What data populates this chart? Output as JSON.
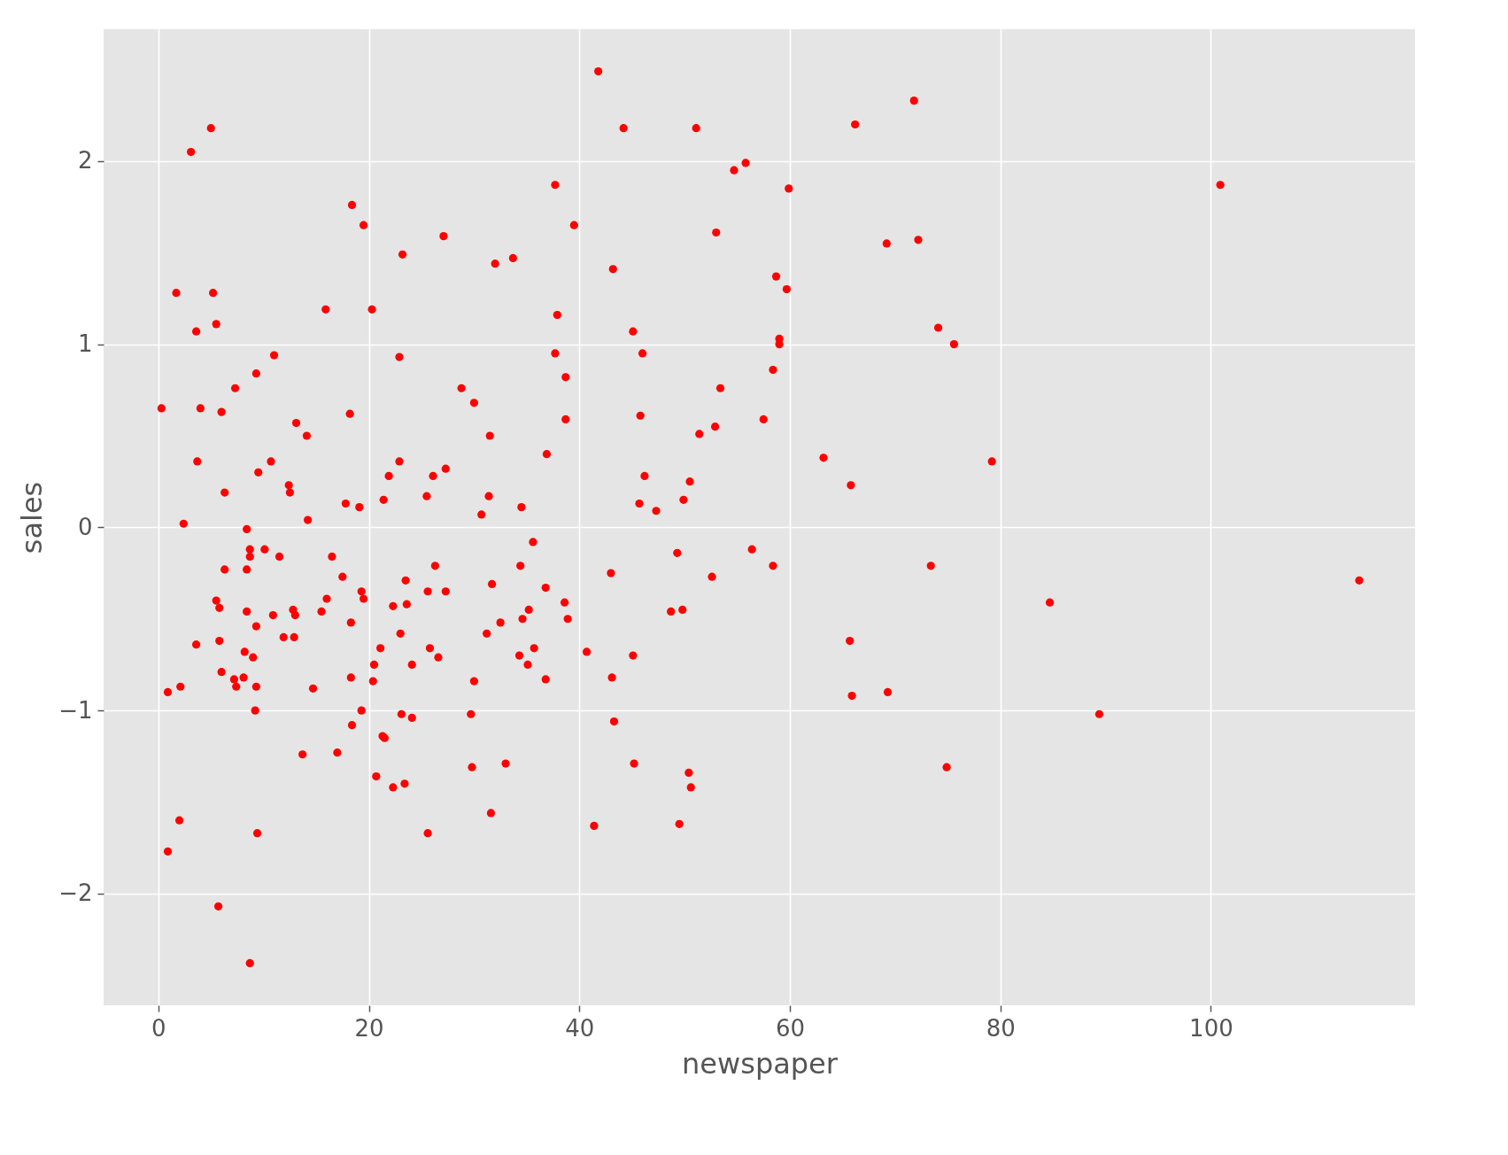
{
  "chart_data": {
    "type": "scatter",
    "xlabel": "newspaper",
    "ylabel": "sales",
    "color": "#ff0000",
    "marker": "circle",
    "grid": true,
    "xlim": [
      -5.2,
      119.4
    ],
    "ylim": [
      -2.61,
      2.72
    ],
    "xticks": [
      0,
      20,
      40,
      60,
      80,
      100
    ],
    "yticks": [
      -2,
      -1,
      0,
      1,
      2
    ],
    "x": [
      0.3,
      0.9,
      0.9,
      1.7,
      2.1,
      2.0,
      2.4,
      3.1,
      3.6,
      3.7,
      3.6,
      4.0,
      5.0,
      5.2,
      5.5,
      5.5,
      5.8,
      5.8,
      5.7,
      6.0,
      6.0,
      6.3,
      6.3,
      7.3,
      7.2,
      7.4,
      8.1,
      8.2,
      8.4,
      8.4,
      8.4,
      8.7,
      8.7,
      8.7,
      9.0,
      9.3,
      9.3,
      9.3,
      9.2,
      9.4,
      9.5,
      10.1,
      10.7,
      10.9,
      11.0,
      11.5,
      11.9,
      12.4,
      12.5,
      12.8,
      13.0,
      12.9,
      13.1,
      13.7,
      14.1,
      14.2,
      14.7,
      15.5,
      15.9,
      16.0,
      16.5,
      17.0,
      17.5,
      17.8,
      18.2,
      18.3,
      18.3,
      18.4,
      18.4,
      19.1,
      19.3,
      19.5,
      19.3,
      19.5,
      20.3,
      20.4,
      20.5,
      20.7,
      21.1,
      21.3,
      21.5,
      21.4,
      21.9,
      22.3,
      22.3,
      22.9,
      22.9,
      23.0,
      23.2,
      23.1,
      23.4,
      23.5,
      23.6,
      24.1,
      24.1,
      25.5,
      25.6,
      25.6,
      25.8,
      26.1,
      26.3,
      26.6,
      27.1,
      27.3,
      27.3,
      28.8,
      29.7,
      29.8,
      30.0,
      30.0,
      30.7,
      31.2,
      31.4,
      31.5,
      31.6,
      31.7,
      32.0,
      32.5,
      33.0,
      33.7,
      34.4,
      34.5,
      34.3,
      34.6,
      35.1,
      35.2,
      35.6,
      35.7,
      36.8,
      36.9,
      36.8,
      37.7,
      37.7,
      37.9,
      38.6,
      38.7,
      38.7,
      38.9,
      39.5,
      40.7,
      41.4,
      41.8,
      43.0,
      43.2,
      43.1,
      43.3,
      44.2,
      45.1,
      45.1,
      45.2,
      45.7,
      45.8,
      46.0,
      46.2,
      47.3,
      48.7,
      49.3,
      49.5,
      49.8,
      49.9,
      50.4,
      50.5,
      50.6,
      51.1,
      51.4,
      52.6,
      52.9,
      53.0,
      53.4,
      54.7,
      55.8,
      56.4,
      57.5,
      58.4,
      58.4,
      58.7,
      59.0,
      59.0,
      59.7,
      59.9,
      63.2,
      65.7,
      65.8,
      65.9,
      66.2,
      69.2,
      69.3,
      71.8,
      72.2,
      73.4,
      74.1,
      74.9,
      75.6,
      79.2,
      84.7,
      89.4,
      100.9,
      114.1
    ],
    "values": [
      0.65,
      -0.9,
      -1.77,
      1.28,
      -0.87,
      -1.6,
      0.02,
      2.05,
      1.07,
      0.36,
      -0.64,
      0.65,
      2.18,
      1.28,
      1.11,
      -0.4,
      -0.44,
      -0.62,
      -2.07,
      0.63,
      -0.79,
      0.19,
      -0.23,
      0.76,
      -0.83,
      -0.87,
      -0.82,
      -0.68,
      -0.01,
      -0.23,
      -0.46,
      -0.12,
      -0.16,
      -2.38,
      -0.71,
      0.84,
      -0.54,
      -0.87,
      -1.0,
      -1.67,
      0.3,
      -0.12,
      0.36,
      -0.48,
      0.94,
      -0.16,
      -0.6,
      0.23,
      0.19,
      -0.45,
      -0.48,
      -0.6,
      0.57,
      -1.24,
      0.5,
      0.04,
      -0.88,
      -0.46,
      1.19,
      -0.39,
      -0.16,
      -1.23,
      -0.27,
      0.13,
      0.62,
      -0.52,
      -0.82,
      -1.08,
      1.76,
      0.11,
      -0.35,
      -0.39,
      -1.0,
      1.65,
      1.19,
      -0.84,
      -0.75,
      -1.36,
      -0.66,
      -1.14,
      -1.15,
      0.15,
      0.28,
      -0.43,
      -1.42,
      0.93,
      0.36,
      -0.58,
      1.49,
      -1.02,
      -1.4,
      -0.29,
      -0.42,
      -0.75,
      -1.04,
      0.17,
      -0.35,
      -1.67,
      -0.66,
      0.28,
      -0.21,
      -0.71,
      1.59,
      0.32,
      -0.35,
      0.76,
      -1.02,
      -1.31,
      0.68,
      -0.84,
      0.07,
      -0.58,
      0.17,
      0.5,
      -1.56,
      -0.31,
      1.44,
      -0.52,
      -1.29,
      1.47,
      -0.21,
      0.11,
      -0.7,
      -0.5,
      -0.75,
      -0.45,
      -0.08,
      -0.66,
      -0.33,
      0.4,
      -0.83,
      1.87,
      0.95,
      1.16,
      -0.41,
      0.82,
      0.59,
      -0.5,
      1.65,
      -0.68,
      -1.63,
      2.49,
      -0.25,
      1.41,
      -0.82,
      -1.06,
      2.18,
      1.07,
      -0.7,
      -1.29,
      0.13,
      0.61,
      0.95,
      0.28,
      0.09,
      -0.46,
      -0.14,
      -1.62,
      -0.45,
      0.15,
      -1.34,
      0.25,
      -1.42,
      2.18,
      0.51,
      -0.27,
      0.55,
      1.61,
      0.76,
      1.95,
      1.99,
      -0.12,
      0.59,
      -0.21,
      0.86,
      1.37,
      1.03,
      1.0,
      1.3,
      1.85,
      0.38,
      -0.62,
      0.23,
      -0.92,
      2.2,
      1.55,
      -0.9,
      2.33,
      1.57,
      -0.21,
      1.09,
      -1.31,
      1.0,
      0.36,
      -0.41,
      -1.02,
      1.87,
      -0.29
    ]
  }
}
